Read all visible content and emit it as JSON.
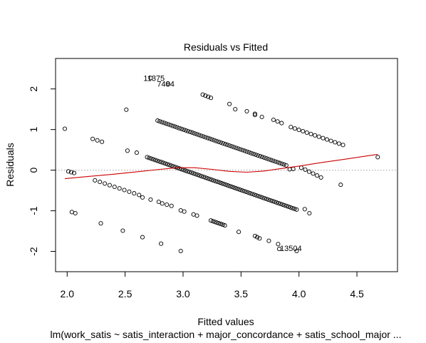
{
  "chart_data": {
    "type": "scatter",
    "title": "Residuals vs Fitted",
    "xlabel": "Fitted values",
    "ylabel": "Residuals",
    "subtitle": "lm(work_satis ~ satis_interaction + major_concordance + satis_school_major  ...",
    "xlim": [
      1.9,
      4.85
    ],
    "ylim": [
      -2.5,
      2.75
    ],
    "x_ticks": [
      2.0,
      2.5,
      3.0,
      3.5,
      4.0,
      4.5
    ],
    "x_tick_labels": [
      "2.0",
      "2.5",
      "3.0",
      "3.5",
      "4.0",
      "4.5"
    ],
    "y_ticks": [
      -2,
      -1,
      0,
      1,
      2
    ],
    "y_tick_labels": [
      "-2",
      "-1",
      "0",
      "1",
      "2"
    ],
    "reference_line": {
      "y": 0,
      "style": "dotted",
      "color": "#a0a0a0"
    },
    "smoother_color": "#cc0000",
    "point_color": "#000000",
    "grid": false,
    "labeled_points": [
      {
        "label": "11375",
        "x": 2.75,
        "y": 2.27
      },
      {
        "label": "7484",
        "x": 2.85,
        "y": 2.13
      },
      {
        "label": "13504",
        "x": 3.93,
        "y": -1.92
      }
    ],
    "bands": [
      {
        "x_start": 2.22,
        "y_start": 0.77,
        "x_end": 2.3,
        "y_end": 0.7,
        "n": 3
      },
      {
        "x_start": 2.52,
        "y_start": 0.48,
        "x_end": 2.6,
        "y_end": 0.43,
        "n": 2
      },
      {
        "x_start": 2.78,
        "y_start": 1.22,
        "x_end": 3.89,
        "y_end": 0.12,
        "n": 60
      },
      {
        "x_start": 3.93,
        "y_start": 1.06,
        "x_end": 4.38,
        "y_end": 0.62,
        "n": 14
      },
      {
        "x_start": 2.69,
        "y_start": 0.32,
        "x_end": 3.98,
        "y_end": -0.97,
        "n": 75
      },
      {
        "x_start": 4.02,
        "y_start": 0.06,
        "x_end": 4.19,
        "y_end": -0.18,
        "n": 6
      },
      {
        "x_start": 2.24,
        "y_start": -0.25,
        "x_end": 2.62,
        "y_end": -0.61,
        "n": 10
      },
      {
        "x_start": 2.65,
        "y_start": -0.67,
        "x_end": 2.79,
        "y_end": -0.78,
        "n": 3
      },
      {
        "x_start": 2.82,
        "y_start": -0.82,
        "x_end": 2.9,
        "y_end": -0.88,
        "n": 3
      },
      {
        "x_start": 2.98,
        "y_start": -0.99,
        "x_end": 3.01,
        "y_end": -1.02,
        "n": 2
      },
      {
        "x_start": 3.09,
        "y_start": -1.09,
        "x_end": 3.12,
        "y_end": -1.12,
        "n": 2
      },
      {
        "x_start": 3.24,
        "y_start": -1.24,
        "x_end": 3.36,
        "y_end": -1.36,
        "n": 8
      },
      {
        "x_start": 3.48,
        "y_start": -1.52,
        "x_end": 3.48,
        "y_end": -1.52,
        "n": 1
      },
      {
        "x_start": 3.62,
        "y_start": -1.62,
        "x_end": 3.66,
        "y_end": -1.68,
        "n": 3
      },
      {
        "x_start": 3.74,
        "y_start": -1.74,
        "x_end": 3.82,
        "y_end": -1.82,
        "n": 2
      },
      {
        "x_start": 3.92,
        "y_start": 0.02,
        "x_end": 3.95,
        "y_end": 0.03,
        "n": 2
      },
      {
        "x_start": 4.05,
        "y_start": -0.96,
        "x_end": 4.09,
        "y_end": -1.06,
        "n": 2
      },
      {
        "x_start": 2.01,
        "y_start": -0.03,
        "x_end": 2.06,
        "y_end": -0.07,
        "n": 3
      },
      {
        "x_start": 2.04,
        "y_start": -1.03,
        "x_end": 2.07,
        "y_end": -1.06,
        "n": 2
      },
      {
        "x_start": 3.17,
        "y_start": 1.86,
        "x_end": 3.24,
        "y_end": 1.78,
        "n": 4
      },
      {
        "x_start": 3.45,
        "y_start": 1.5,
        "x_end": 3.55,
        "y_end": 1.45,
        "n": 2
      },
      {
        "x_start": 3.62,
        "y_start": 1.39,
        "x_end": 3.62,
        "y_end": 1.36,
        "n": 2
      },
      {
        "x_start": 3.68,
        "y_start": 1.31,
        "x_end": 3.68,
        "y_end": 1.31,
        "n": 1
      },
      {
        "x_start": 3.78,
        "y_start": 1.24,
        "x_end": 3.85,
        "y_end": 1.16,
        "n": 3
      }
    ],
    "points": [
      {
        "x": 1.98,
        "y": 1.02
      },
      {
        "x": 2.29,
        "y": -1.31
      },
      {
        "x": 2.48,
        "y": -1.49
      },
      {
        "x": 2.51,
        "y": 1.49
      },
      {
        "x": 2.65,
        "y": -1.65
      },
      {
        "x": 2.72,
        "y": 2.27
      },
      {
        "x": 2.81,
        "y": -1.81
      },
      {
        "x": 2.87,
        "y": 2.13
      },
      {
        "x": 2.98,
        "y": -1.99
      },
      {
        "x": 3.4,
        "y": 1.63
      },
      {
        "x": 3.83,
        "y": -1.94
      },
      {
        "x": 3.98,
        "y": -1.99
      },
      {
        "x": 4.36,
        "y": -0.36
      },
      {
        "x": 4.68,
        "y": 0.32
      }
    ],
    "smoother": [
      {
        "x": 1.98,
        "y": -0.21
      },
      {
        "x": 2.2,
        "y": -0.15
      },
      {
        "x": 2.4,
        "y": -0.1
      },
      {
        "x": 2.6,
        "y": -0.04
      },
      {
        "x": 2.8,
        "y": 0.02
      },
      {
        "x": 2.95,
        "y": 0.06
      },
      {
        "x": 3.1,
        "y": 0.06
      },
      {
        "x": 3.25,
        "y": 0.02
      },
      {
        "x": 3.4,
        "y": -0.03
      },
      {
        "x": 3.55,
        "y": -0.05
      },
      {
        "x": 3.7,
        "y": -0.02
      },
      {
        "x": 3.85,
        "y": 0.04
      },
      {
        "x": 4.0,
        "y": 0.1
      },
      {
        "x": 4.2,
        "y": 0.19
      },
      {
        "x": 4.4,
        "y": 0.27
      },
      {
        "x": 4.68,
        "y": 0.39
      }
    ]
  }
}
